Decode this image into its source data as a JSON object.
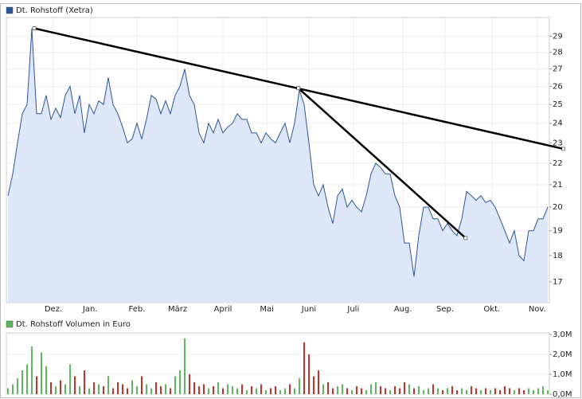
{
  "chart_data": [
    {
      "type": "area",
      "series": [
        {
          "name": "Dt. Rohstoff (Xetra)",
          "color": "#2f5597",
          "fill": "#dde7f8",
          "values": [
            20.5,
            21.5,
            23,
            24.5,
            25,
            29.5,
            24.5,
            24.5,
            25.5,
            24.2,
            24.8,
            24.3,
            25.5,
            26,
            24.5,
            25.5,
            23.5,
            25,
            24.5,
            25.2,
            25,
            26.5,
            25,
            24.5,
            23.8,
            23,
            23.2,
            24,
            23.2,
            24.2,
            25.5,
            25.3,
            24.5,
            25.2,
            24.5,
            25.5,
            26,
            27,
            25.5,
            25,
            23.5,
            23,
            24,
            23.5,
            24.2,
            23.5,
            23.8,
            24,
            24.5,
            24.2,
            24.2,
            23.5,
            23.5,
            23,
            23.5,
            23.2,
            23,
            23.5,
            24,
            23,
            24,
            25.8,
            25,
            23,
            21,
            20.5,
            21,
            20,
            19.3,
            20.5,
            20.8,
            20,
            20.3,
            20,
            19.8,
            20.5,
            21.5,
            22,
            21.8,
            21.5,
            21.5,
            20.5,
            20,
            18.5,
            18.5,
            17.2,
            18.8,
            20,
            20,
            19.5,
            19.5,
            19,
            19.3,
            19,
            18.8,
            19.5,
            20.7,
            20.5,
            20.3,
            20.5,
            20.2,
            20.3,
            20,
            19.5,
            19,
            18.5,
            19,
            18,
            17.8,
            19,
            19,
            19.5,
            19.5,
            20
          ]
        }
      ],
      "xlim": [
        0,
        113
      ],
      "xticks": [
        {
          "value": 9.5,
          "label": "Dez."
        },
        {
          "value": 17.2,
          "label": "Jan."
        },
        {
          "value": 27,
          "label": "Feb."
        },
        {
          "value": 35.5,
          "label": "März"
        },
        {
          "value": 45,
          "label": "April"
        },
        {
          "value": 54.2,
          "label": "Mai"
        },
        {
          "value": 63,
          "label": "Juni"
        },
        {
          "value": 72.3,
          "label": "Juli"
        },
        {
          "value": 82.7,
          "label": "Aug."
        },
        {
          "value": 91.5,
          "label": "Sep."
        },
        {
          "value": 101.3,
          "label": "Okt."
        },
        {
          "value": 110.8,
          "label": "Nov."
        }
      ],
      "ylim": [
        16.25,
        30.2
      ],
      "yticks": [
        17,
        18,
        19,
        20,
        21,
        22,
        23,
        24,
        25,
        26,
        27,
        28,
        29
      ],
      "log_scale": true,
      "grid": true,
      "trendlines": [
        {
          "x": [
            5.5,
            116.3
          ],
          "values": [
            29.5,
            22.7
          ]
        },
        {
          "x": [
            60.8,
            95.8
          ],
          "values": [
            25.9,
            18.7
          ]
        }
      ],
      "trendline_color": "#000000"
    },
    {
      "type": "bar",
      "series": [
        {
          "name": "Dt. Rohstoff Volumen in Euro",
          "color": "#5cb85c",
          "down_color": "#c9302c",
          "values": [
            300000,
            500000,
            800000,
            1200000,
            1500000,
            2400000,
            900000,
            2100000,
            1400000,
            600000,
            400000,
            700000,
            500000,
            1500000,
            900000,
            400000,
            1200000,
            300000,
            600000,
            500000,
            400000,
            900000,
            300000,
            600000,
            500000,
            300000,
            700000,
            400000,
            900000,
            500000,
            300000,
            600000,
            400000,
            500000,
            300000,
            900000,
            1200000,
            2800000,
            1000000,
            600000,
            400000,
            500000,
            300000,
            400000,
            600000,
            300000,
            500000,
            400000,
            300000,
            500000,
            200000,
            400000,
            300000,
            500000,
            200000,
            300000,
            400000,
            200000,
            300000,
            500000,
            300000,
            800000,
            2600000,
            2000000,
            900000,
            1200000,
            500000,
            600000,
            300000,
            400000,
            500000,
            300000,
            200000,
            400000,
            300000,
            200000,
            500000,
            600000,
            400000,
            300000,
            200000,
            400000,
            300000,
            600000,
            500000,
            300000,
            400000,
            200000,
            300000,
            500000,
            300000,
            200000,
            300000,
            400000,
            200000,
            300000,
            200000,
            400000,
            300000,
            200000,
            300000,
            200000,
            300000,
            200000,
            400000,
            300000,
            200000,
            300000,
            200000,
            300000,
            200000,
            300000,
            400000,
            200000
          ]
        }
      ],
      "xlim": [
        0,
        113
      ],
      "ylim": [
        0,
        3000000
      ],
      "yticks": [
        {
          "value": 0,
          "label": "0,0M"
        },
        {
          "value": 1000000,
          "label": "1,0M"
        },
        {
          "value": 2000000,
          "label": "2,0M"
        },
        {
          "value": 3000000,
          "label": "3,0M"
        }
      ],
      "grid": true
    }
  ]
}
